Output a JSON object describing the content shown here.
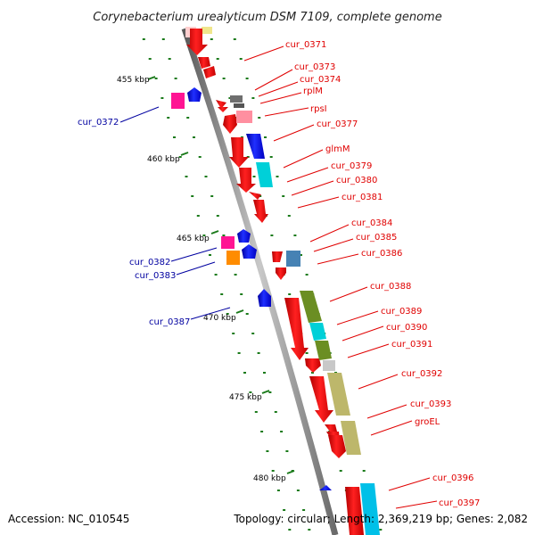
{
  "title": "Corynebacterium urealyticum DSM 7109, complete genome",
  "accession": "Accession: NC_010545",
  "topology": "Topology: circular; Length: 2,369,219 bp; Genes: 2,082",
  "ticks": [
    "455 kbp",
    "460 kbp",
    "465 kbp",
    "470 kbp",
    "475 kbp",
    "480 kbp"
  ],
  "genes_right": [
    "cur_0371",
    "cur_0373",
    "cur_0374",
    "rplM",
    "rpsI",
    "cur_0377",
    "glmM",
    "cur_0379",
    "cur_0380",
    "cur_0381",
    "cur_0384",
    "cur_0385",
    "cur_0386",
    "cur_0388",
    "cur_0389",
    "cur_0390",
    "cur_0391",
    "cur_0392",
    "cur_0393",
    "groEL",
    "cur_0396",
    "cur_0397"
  ],
  "genes_left": [
    "cur_0372",
    "cur_0382",
    "cur_0383",
    "cur_0387"
  ],
  "colors": {
    "backbone": "#8c8c8c",
    "cds_forward": "#ff0000",
    "cds_reverse": "#0000ff",
    "right_label": "#e00000",
    "left_label": "#0000a0",
    "dots": "#1a7a1a",
    "cog_gray": "#6e6e6e",
    "cog_pink": "#ff8fa0",
    "cog_cyan": "#00d0d8",
    "cog_steel": "#4682b4",
    "cog_olive": "#6b8e23",
    "cog_khaki": "#bdb76b",
    "cog_magenta": "#ff1493",
    "cog_orange": "#ff8c00",
    "cog_lightgray": "#c8c8c8",
    "cog_yellow": "#f0e68c"
  }
}
